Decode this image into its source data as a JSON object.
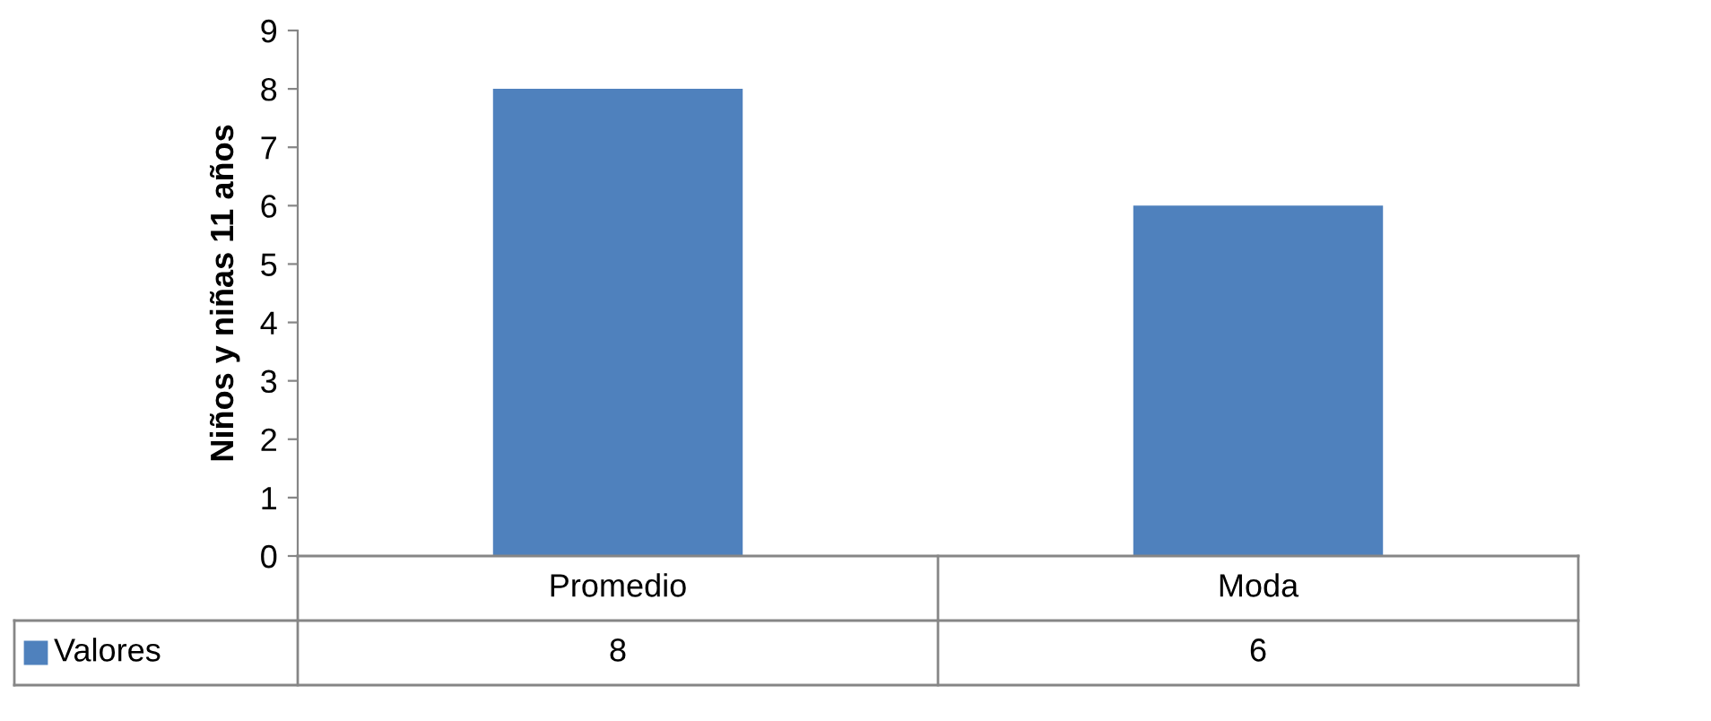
{
  "chart_data": {
    "type": "bar",
    "ylabel": "Niños y niñas 11 años",
    "categories": [
      "Promedio",
      "Moda"
    ],
    "series": [
      {
        "name": "Valores",
        "color": "#4f81bd",
        "values": [
          8,
          6
        ]
      }
    ],
    "ylim": [
      0,
      9
    ],
    "yticks": [
      0,
      1,
      2,
      3,
      4,
      5,
      6,
      7,
      8,
      9
    ],
    "grid": false,
    "legend": "bottom left",
    "data_labels": true
  }
}
